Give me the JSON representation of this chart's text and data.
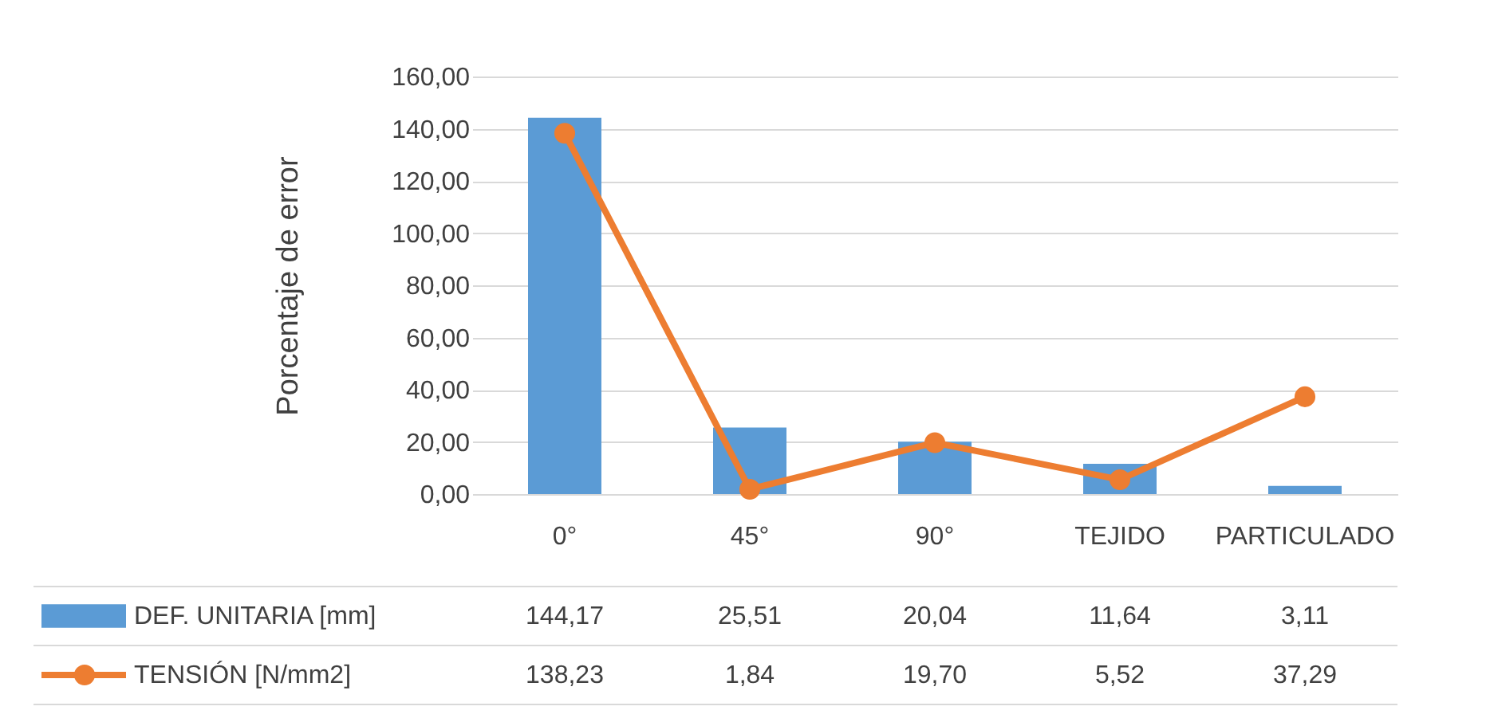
{
  "chart_data": {
    "type": "bar",
    "ylabel": "Porcentaje de error",
    "categories": [
      "0°",
      "45°",
      "90°",
      "TEJIDO",
      "PARTICULADO"
    ],
    "series": [
      {
        "name": "DEF. UNITARIA [mm]",
        "color": "#5b9bd5",
        "values": [
          144.17,
          25.51,
          20.04,
          11.64,
          3.11
        ],
        "value_labels": [
          "144,17",
          "25,51",
          "20,04",
          "11,64",
          "3,11"
        ]
      },
      {
        "name": "TENSIÓN [N/mm2]",
        "type": "line",
        "color": "#ed7d31",
        "marker": "circle",
        "values": [
          138.23,
          1.84,
          19.7,
          5.52,
          37.29
        ],
        "value_labels": [
          "138,23",
          "1,84",
          "19,70",
          "5,52",
          "37,29"
        ]
      }
    ],
    "ylim": [
      0,
      160
    ],
    "yticks": [
      {
        "value": 0,
        "label": "0,00"
      },
      {
        "value": 20,
        "label": "20,00"
      },
      {
        "value": 40,
        "label": "40,00"
      },
      {
        "value": 60,
        "label": "60,00"
      },
      {
        "value": 80,
        "label": "80,00"
      },
      {
        "value": 100,
        "label": "100,00"
      },
      {
        "value": 120,
        "label": "120,00"
      },
      {
        "value": 140,
        "label": "140,00"
      },
      {
        "value": 160,
        "label": "160,00"
      }
    ],
    "grid": "y",
    "legend": "bottom"
  }
}
